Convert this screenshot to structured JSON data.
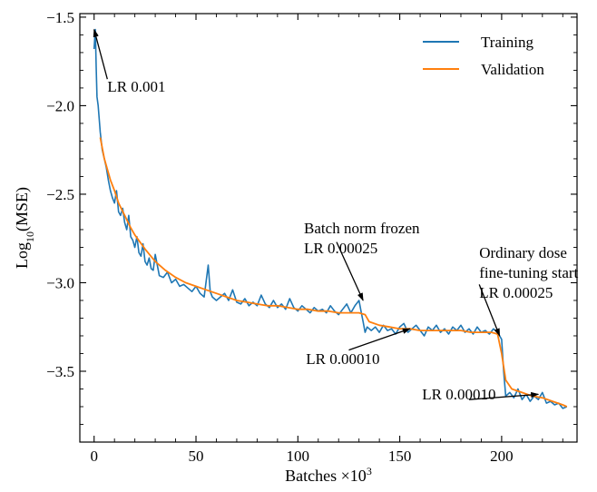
{
  "chart_data": {
    "type": "line",
    "title": "",
    "xlabel_main": "Batches ×10",
    "xlabel_sup": "3",
    "ylabel_main": "Log",
    "ylabel_sub": "10",
    "ylabel_tail": "(MSE)",
    "xlim": [
      -7,
      237
    ],
    "ylim": [
      -3.9,
      -1.48
    ],
    "xticks": [
      0,
      50,
      100,
      150,
      200
    ],
    "yticks": [
      -1.5,
      -2.0,
      -2.5,
      -3.0,
      -3.5
    ],
    "ytick_labels": [
      "−1.5",
      "−2.0",
      "−2.5",
      "−3.0",
      "−3.5"
    ],
    "legend_position": "top-right",
    "series": [
      {
        "name": "Training",
        "color": "#1f77b4",
        "x": [
          0.0,
          0.3,
          0.6,
          1.0,
          1.4,
          2.0,
          3,
          4,
          5,
          6,
          7,
          8,
          9,
          10,
          11,
          12,
          13,
          14,
          15,
          16,
          17,
          18,
          19,
          20,
          21,
          22,
          23,
          24,
          25,
          26,
          27,
          28,
          29,
          30,
          32,
          34,
          36,
          38,
          40,
          42,
          44,
          46,
          48,
          50,
          52,
          54,
          56,
          57,
          58,
          60,
          62,
          64,
          66,
          68,
          70,
          72,
          74,
          76,
          78,
          80,
          82,
          84,
          86,
          88,
          90,
          92,
          94,
          96,
          98,
          100,
          102,
          104,
          106,
          108,
          110,
          112,
          114,
          116,
          118,
          120,
          122,
          124,
          126,
          128,
          130,
          131,
          132,
          133,
          134,
          136,
          138,
          140,
          142,
          144,
          146,
          148,
          150,
          152,
          154,
          156,
          158,
          160,
          162,
          164,
          166,
          168,
          170,
          172,
          174,
          176,
          178,
          180,
          182,
          184,
          186,
          188,
          190,
          192,
          194,
          196,
          198,
          199,
          200,
          201,
          202,
          204,
          206,
          208,
          210,
          212,
          214,
          216,
          218,
          220,
          222,
          224,
          226,
          228,
          230,
          232
        ],
        "values": [
          -1.68,
          -1.62,
          -1.57,
          -1.78,
          -1.95,
          -2.0,
          -2.15,
          -2.25,
          -2.3,
          -2.35,
          -2.42,
          -2.48,
          -2.52,
          -2.55,
          -2.48,
          -2.6,
          -2.62,
          -2.58,
          -2.66,
          -2.7,
          -2.62,
          -2.74,
          -2.76,
          -2.8,
          -2.74,
          -2.83,
          -2.85,
          -2.78,
          -2.88,
          -2.9,
          -2.86,
          -2.92,
          -2.93,
          -2.84,
          -2.96,
          -2.97,
          -2.94,
          -3.0,
          -2.98,
          -3.02,
          -3.01,
          -3.03,
          -3.05,
          -3.02,
          -3.06,
          -3.08,
          -2.9,
          -3.05,
          -3.08,
          -3.1,
          -3.08,
          -3.06,
          -3.1,
          -3.04,
          -3.11,
          -3.12,
          -3.09,
          -3.13,
          -3.11,
          -3.13,
          -3.07,
          -3.12,
          -3.14,
          -3.1,
          -3.14,
          -3.12,
          -3.15,
          -3.09,
          -3.14,
          -3.16,
          -3.13,
          -3.15,
          -3.17,
          -3.14,
          -3.16,
          -3.15,
          -3.17,
          -3.13,
          -3.16,
          -3.18,
          -3.15,
          -3.12,
          -3.17,
          -3.13,
          -3.1,
          -3.16,
          -3.22,
          -3.28,
          -3.25,
          -3.27,
          -3.25,
          -3.28,
          -3.24,
          -3.27,
          -3.26,
          -3.29,
          -3.25,
          -3.23,
          -3.28,
          -3.26,
          -3.24,
          -3.27,
          -3.3,
          -3.25,
          -3.27,
          -3.24,
          -3.28,
          -3.26,
          -3.29,
          -3.25,
          -3.27,
          -3.24,
          -3.28,
          -3.26,
          -3.29,
          -3.25,
          -3.28,
          -3.27,
          -3.29,
          -3.26,
          -3.28,
          -3.3,
          -3.32,
          -3.5,
          -3.64,
          -3.62,
          -3.65,
          -3.6,
          -3.66,
          -3.63,
          -3.67,
          -3.64,
          -3.66,
          -3.62,
          -3.68,
          -3.67,
          -3.69,
          -3.68,
          -3.71,
          -3.7
        ]
      },
      {
        "name": "Validation",
        "color": "#ff7f0e",
        "x": [
          3,
          5,
          8,
          10,
          12,
          15,
          18,
          20,
          25,
          30,
          35,
          40,
          45,
          50,
          55,
          60,
          65,
          70,
          75,
          80,
          85,
          90,
          95,
          100,
          105,
          110,
          115,
          120,
          125,
          130,
          133,
          135,
          140,
          145,
          150,
          155,
          160,
          165,
          170,
          175,
          180,
          185,
          190,
          195,
          198,
          200,
          202,
          205,
          210,
          215,
          220,
          225,
          230,
          232
        ],
        "values": [
          -2.18,
          -2.3,
          -2.42,
          -2.48,
          -2.55,
          -2.62,
          -2.69,
          -2.73,
          -2.81,
          -2.88,
          -2.93,
          -2.97,
          -3.0,
          -3.02,
          -3.04,
          -3.06,
          -3.08,
          -3.1,
          -3.11,
          -3.12,
          -3.13,
          -3.13,
          -3.14,
          -3.15,
          -3.15,
          -3.16,
          -3.16,
          -3.17,
          -3.17,
          -3.17,
          -3.18,
          -3.22,
          -3.24,
          -3.25,
          -3.26,
          -3.26,
          -3.27,
          -3.27,
          -3.27,
          -3.27,
          -3.27,
          -3.28,
          -3.28,
          -3.28,
          -3.29,
          -3.4,
          -3.55,
          -3.6,
          -3.62,
          -3.64,
          -3.65,
          -3.67,
          -3.69,
          -3.7
        ]
      }
    ],
    "annotations": [
      {
        "id": "lr-0001",
        "lines": [
          "LR 0.001"
        ],
        "point": [
          0,
          -1.57
        ],
        "text_anchor_pos": [
          6.5,
          -1.92
        ],
        "arrow_from": [
          6.5,
          -1.85
        ]
      },
      {
        "id": "batch-norm",
        "lines": [
          "Batch norm frozen",
          "LR 0.00025"
        ],
        "point": [
          132,
          -3.1
        ],
        "text_anchor_pos": [
          103,
          -2.72
        ],
        "arrow_from": [
          119,
          -2.77
        ]
      },
      {
        "id": "lr-00010-a",
        "lines": [
          "LR 0.00010"
        ],
        "point": [
          155,
          -3.26
        ],
        "text_anchor_pos": [
          104,
          -3.46
        ],
        "arrow_from": [
          125,
          -3.38
        ]
      },
      {
        "id": "ordinary-dose",
        "lines": [
          "Ordinary dose",
          "fine-tuning start",
          "LR 0.00025"
        ],
        "point": [
          199,
          -3.3
        ],
        "text_anchor_pos": [
          189,
          -2.86
        ],
        "arrow_from": [
          189,
          -3.01
        ]
      },
      {
        "id": "lr-00010-b",
        "lines": [
          "LR 0.00010"
        ],
        "point": [
          218,
          -3.63
        ],
        "text_anchor_pos": [
          161,
          -3.66
        ],
        "arrow_from": [
          184,
          -3.66
        ]
      }
    ]
  }
}
